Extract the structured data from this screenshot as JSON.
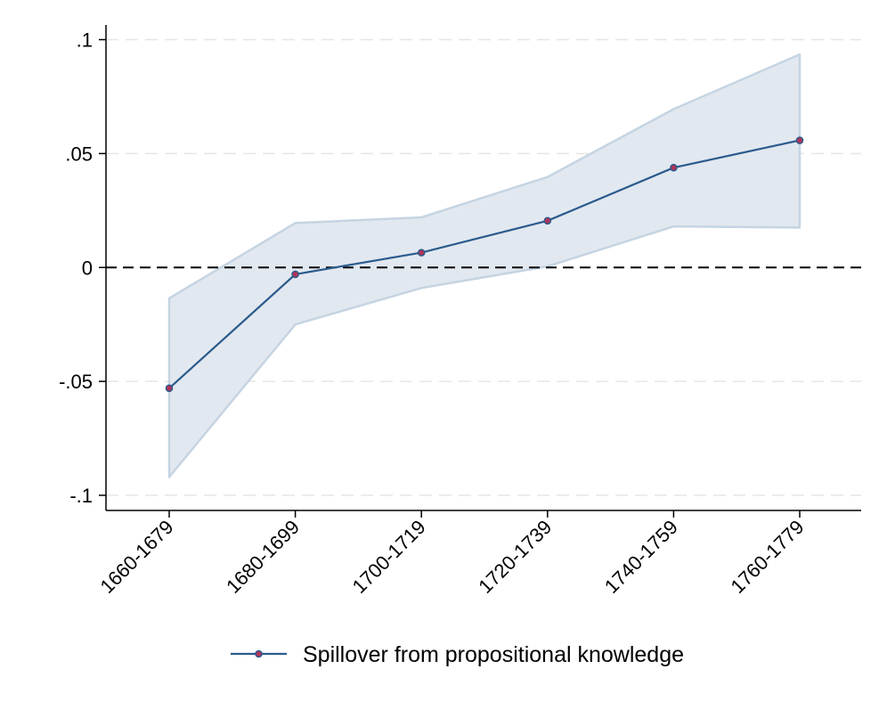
{
  "chart_data": {
    "type": "line",
    "categories": [
      "1660-1679",
      "1680-1699",
      "1700-1719",
      "1720-1739",
      "1740-1759",
      "1760-1779"
    ],
    "series": [
      {
        "name": "Spillover from propositional knowledge",
        "values": [
          -0.053,
          -0.003,
          0.0065,
          0.0205,
          0.0438,
          0.0558
        ],
        "ci_lower": [
          -0.092,
          -0.025,
          -0.009,
          0.0005,
          0.018,
          0.0175
        ],
        "ci_upper": [
          -0.0135,
          0.0195,
          0.022,
          0.0397,
          0.0695,
          0.0935
        ]
      }
    ],
    "y_ticks": [
      ".1",
      ".05",
      "0",
      "-.05",
      "-.1"
    ],
    "y_tick_values": [
      0.1,
      0.05,
      0,
      -0.05,
      -0.1
    ],
    "ylim": [
      -0.107,
      0.107
    ],
    "reference_line": 0,
    "grid": true,
    "legend_position": "bottom",
    "title": "",
    "xlabel": "",
    "ylabel": "",
    "colors": {
      "line": "#2a5b8c",
      "marker_fill": "#b0345a",
      "ci_fill": "#e2e8f0",
      "ci_edge": "#c5d4e2",
      "grid": "#e6e6e6",
      "zero_line": "#000000"
    }
  }
}
